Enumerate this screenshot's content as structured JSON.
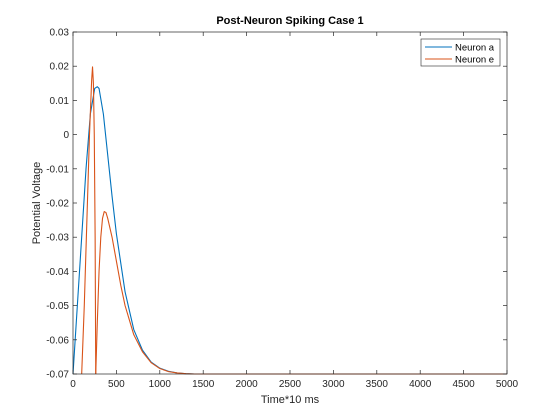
{
  "chart_data": {
    "type": "line",
    "title": "Post-Neuron Spiking Case 1",
    "xlabel": "Time*10 ms",
    "ylabel": "Potential Voltage",
    "xlim": [
      0,
      5000
    ],
    "ylim": [
      -0.07,
      0.03
    ],
    "xticks": [
      0,
      500,
      1000,
      1500,
      2000,
      2500,
      3000,
      3500,
      4000,
      4500,
      5000
    ],
    "yticks": [
      -0.07,
      -0.06,
      -0.05,
      -0.04,
      -0.03,
      -0.02,
      -0.01,
      0,
      0.01,
      0.02,
      0.03
    ],
    "ytick_labels": [
      "-0.07",
      "-0.06",
      "-0.05",
      "-0.04",
      "-0.03",
      "-0.02",
      "-0.01",
      "0",
      "0.01",
      "0.02",
      "0.03"
    ],
    "grid": false,
    "legend_position": "top-right",
    "series": [
      {
        "name": "Neuron a",
        "color": "#0072BD",
        "x": [
          0,
          50,
          100,
          150,
          200,
          250,
          280,
          300,
          350,
          400,
          450,
          500,
          600,
          700,
          800,
          900,
          1000,
          1100,
          1200,
          1300,
          1400,
          1600,
          2000,
          3000,
          5000
        ],
        "y": [
          -0.07,
          -0.05,
          -0.03,
          -0.01,
          0.006,
          0.0135,
          0.014,
          0.0135,
          0.006,
          -0.006,
          -0.018,
          -0.029,
          -0.046,
          -0.057,
          -0.063,
          -0.0665,
          -0.0683,
          -0.0692,
          -0.0697,
          -0.0699,
          -0.07,
          -0.07,
          -0.07,
          -0.07,
          -0.07
        ]
      },
      {
        "name": "Neuron e",
        "color": "#D95319",
        "segments": [
          {
            "x": [
              100,
              130,
              160,
              190,
              215,
              225,
              235,
              245,
              255,
              262
            ],
            "y": [
              -0.07,
              -0.05,
              -0.025,
              0.0,
              0.016,
              0.0198,
              0.015,
              0.0,
              -0.03,
              -0.07
            ]
          },
          {
            "x": [
              262,
              280,
              300,
              320,
              340,
              360,
              380,
              400,
              450,
              500,
              550,
              600,
              700,
              800,
              900,
              1000,
              1100,
              1200,
              1300,
              1400,
              1600,
              2000,
              3000,
              5000
            ],
            "y": [
              -0.07,
              -0.055,
              -0.04,
              -0.03,
              -0.0245,
              -0.0225,
              -0.0228,
              -0.0245,
              -0.03,
              -0.037,
              -0.044,
              -0.05,
              -0.0585,
              -0.0635,
              -0.0667,
              -0.0684,
              -0.0693,
              -0.0697,
              -0.0699,
              -0.07,
              -0.07,
              -0.07,
              -0.07,
              -0.07
            ]
          }
        ]
      }
    ]
  }
}
